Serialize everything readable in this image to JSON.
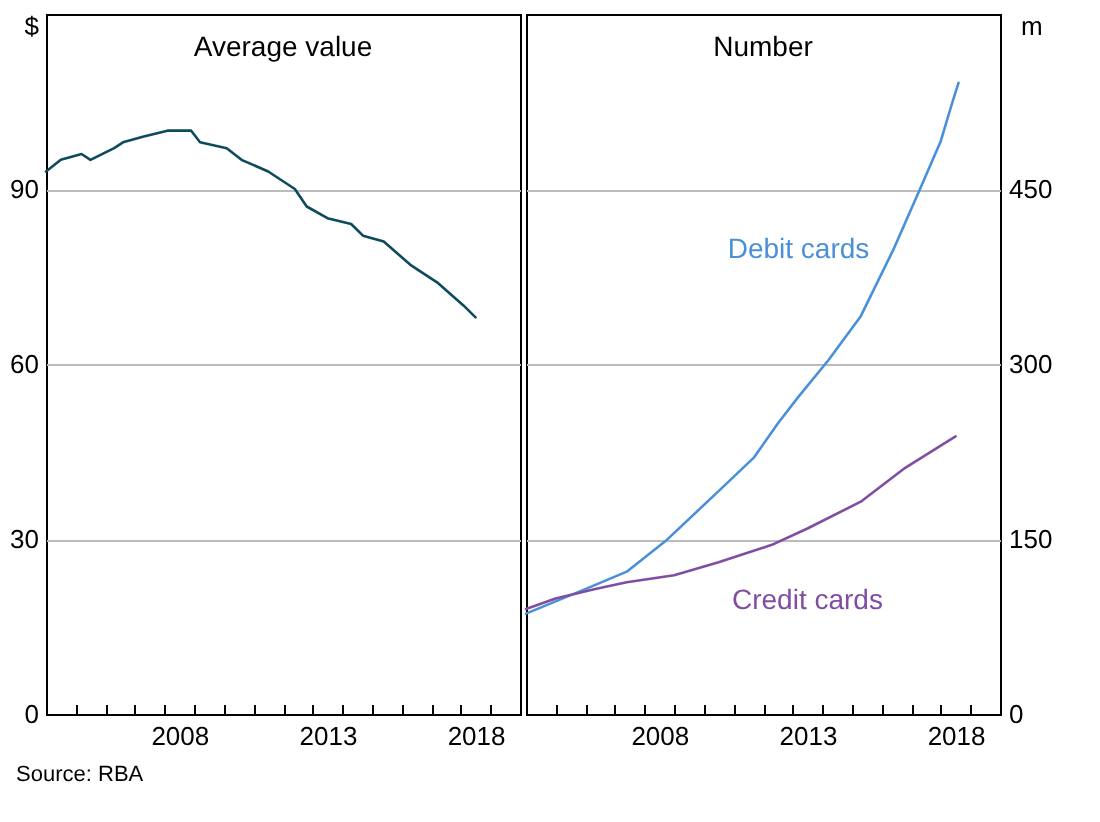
{
  "chart_data": [
    {
      "type": "line",
      "title": "Average value",
      "ylabel": "$",
      "xlim": [
        2004,
        2020
      ],
      "ylim": [
        0,
        120
      ],
      "yticks": [
        0,
        30,
        60,
        90
      ],
      "xticks": [
        {
          "value": 2005,
          "label": null
        },
        {
          "value": 2006,
          "label": null
        },
        {
          "value": 2007,
          "label": null
        },
        {
          "value": 2008,
          "label": null
        },
        {
          "value": 2009,
          "label": null
        },
        {
          "value": 2010,
          "label": null
        },
        {
          "value": 2011,
          "label": null
        },
        {
          "value": 2012,
          "label": null
        },
        {
          "value": 2013,
          "label": null
        },
        {
          "value": 2014,
          "label": null
        },
        {
          "value": 2015,
          "label": null
        },
        {
          "value": 2016,
          "label": null
        },
        {
          "value": 2017,
          "label": null
        },
        {
          "value": 2018,
          "label": null
        },
        {
          "value": 2019,
          "label": null
        },
        {
          "value": 2008.5,
          "label": "2008"
        },
        {
          "value": 2013.5,
          "label": "2013"
        },
        {
          "value": 2018.5,
          "label": "2018"
        }
      ],
      "grid": "y",
      "annotations": [
        "Source:   RBA"
      ],
      "series": [
        {
          "color": "#0d4a5c",
          "x": [
            2004.0,
            2004.5,
            2005.2,
            2005.5,
            2006.3,
            2006.6,
            2007.3,
            2008.1,
            2008.9,
            2009.2,
            2010.1,
            2010.6,
            2011.5,
            2012.4,
            2012.8,
            2013.5,
            2014.3,
            2014.7,
            2015.4,
            2016.3,
            2017.2,
            2018.1,
            2018.5
          ],
          "values": [
            93,
            95,
            96,
            95,
            97,
            98,
            99,
            100,
            100,
            98,
            97,
            95,
            93,
            90,
            87,
            85,
            84,
            82,
            81,
            77,
            74,
            70,
            68
          ]
        }
      ]
    },
    {
      "type": "line",
      "title": "Number",
      "ylabel": "m",
      "xlim": [
        2004,
        2020
      ],
      "ylim": [
        0,
        600
      ],
      "yticks": [
        0,
        150,
        300,
        450
      ],
      "xticks": [
        {
          "value": 2005,
          "label": null
        },
        {
          "value": 2006,
          "label": null
        },
        {
          "value": 2007,
          "label": null
        },
        {
          "value": 2008,
          "label": null
        },
        {
          "value": 2009,
          "label": null
        },
        {
          "value": 2010,
          "label": null
        },
        {
          "value": 2011,
          "label": null
        },
        {
          "value": 2012,
          "label": null
        },
        {
          "value": 2013,
          "label": null
        },
        {
          "value": 2014,
          "label": null
        },
        {
          "value": 2015,
          "label": null
        },
        {
          "value": 2016,
          "label": null
        },
        {
          "value": 2017,
          "label": null
        },
        {
          "value": 2018,
          "label": null
        },
        {
          "value": 2019,
          "label": null
        },
        {
          "value": 2008.5,
          "label": "2008"
        },
        {
          "value": 2013.5,
          "label": "2013"
        },
        {
          "value": 2018.5,
          "label": "2018"
        }
      ],
      "grid": "y",
      "series": [
        {
          "name": "Debit cards",
          "color": "#4a90d9",
          "x": [
            2004.0,
            2006.0,
            2007.4,
            2008.7,
            2010.5,
            2011.7,
            2012.5,
            2013.2,
            2014.2,
            2015.3,
            2016.4,
            2017.3,
            2018.0,
            2018.4,
            2018.6
          ],
          "values": [
            86,
            107,
            122,
            148,
            191,
            220,
            249,
            272,
            303,
            341,
            398,
            450,
            491,
            525,
            541
          ]
        },
        {
          "name": "Credit cards",
          "color": "#7f4ea3",
          "x": [
            2004.0,
            2005.0,
            2006.3,
            2007.4,
            2009.0,
            2010.5,
            2012.3,
            2013.5,
            2015.3,
            2016.8,
            2018.5
          ],
          "values": [
            90,
            99,
            107,
            113,
            119,
            130,
            145,
            159,
            182,
            211,
            238
          ]
        }
      ]
    }
  ]
}
